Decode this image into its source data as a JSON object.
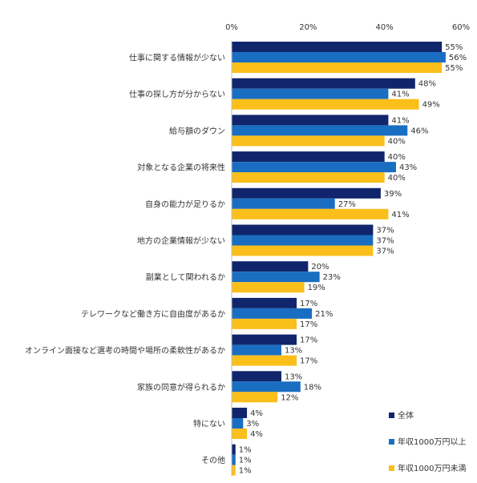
{
  "chart_data": {
    "type": "bar",
    "orientation": "horizontal",
    "title": "",
    "xlabel": "",
    "ylabel": "",
    "xlim": [
      0,
      60
    ],
    "x_ticks": [
      "0%",
      "20%",
      "40%",
      "60%"
    ],
    "grid": false,
    "legend_position": "bottom-right",
    "categories": [
      "仕事に関する情報が少ない",
      "仕事の探し方が分からない",
      "給与額のダウン",
      "対象となる企業の将来性",
      "自身の能力が足りるか",
      "地方の企業情報が少ない",
      "副業として関われるか",
      "テレワークなど働き方に自由度があるか",
      "オンライン面接など選考の時間や場所の柔軟性があるか",
      "家族の同意が得られるか",
      "特にない",
      "その他"
    ],
    "series": [
      {
        "name": "全体",
        "color": "#10256b",
        "values": [
          55,
          48,
          41,
          40,
          39,
          37,
          20,
          17,
          17,
          13,
          4,
          1
        ],
        "labels": [
          "55%",
          "48%",
          "41%",
          "40%",
          "39%",
          "37%",
          "20%",
          "17%",
          "17%",
          "13%",
          "4%",
          "1%"
        ]
      },
      {
        "name": "年収1000万円以上",
        "color": "#1a6ec1",
        "values": [
          56,
          41,
          46,
          43,
          27,
          37,
          23,
          21,
          13,
          18,
          3,
          1
        ],
        "labels": [
          "56%",
          "41%",
          "46%",
          "43%",
          "27%",
          "37%",
          "23%",
          "21%",
          "13%",
          "18%",
          "3%",
          "1%"
        ]
      },
      {
        "name": "年収1000万円未満",
        "color": "#fbbf1b",
        "values": [
          55,
          49,
          40,
          40,
          41,
          37,
          19,
          17,
          17,
          12,
          4,
          1
        ],
        "labels": [
          "55%",
          "49%",
          "40%",
          "40%",
          "41%",
          "37%",
          "19%",
          "17%",
          "17%",
          "12%",
          "4%",
          "1%"
        ]
      }
    ]
  }
}
